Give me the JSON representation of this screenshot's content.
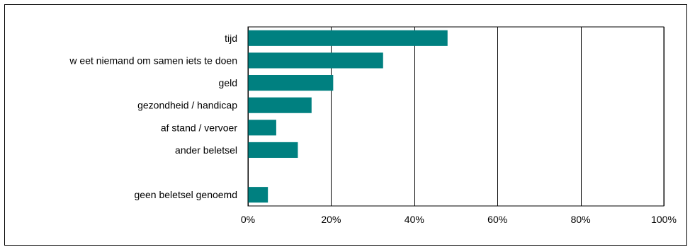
{
  "chart_data": {
    "type": "bar",
    "orientation": "horizontal",
    "title": "",
    "xlabel": "",
    "ylabel": "",
    "categories": [
      "tijd",
      "w eet niemand om samen iets te doen",
      "geld",
      "gezondheid / handicap",
      "af stand / vervoer",
      "ander beletsel",
      "",
      "geen beletsel genoemd"
    ],
    "values": [
      48,
      32.5,
      20.5,
      15.3,
      6.8,
      12,
      null,
      4.8
    ],
    "x_ticks": [
      "0%",
      "20%",
      "40%",
      "60%",
      "80%",
      "100%"
    ],
    "xlim": [
      0,
      100
    ],
    "unit": "%",
    "grid": "vertical",
    "legend": "none",
    "bar_color": "#008080"
  }
}
